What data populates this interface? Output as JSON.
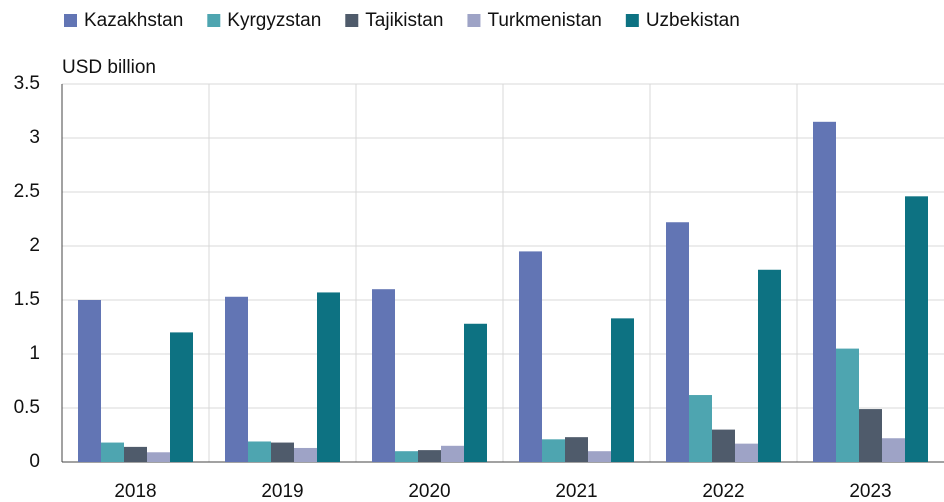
{
  "chart_data": {
    "type": "bar",
    "y_axis_label": "USD billion",
    "categories": [
      "2018",
      "2019",
      "2020",
      "2021",
      "2022",
      "2023"
    ],
    "series": [
      {
        "name": "Kazakhstan",
        "color": "#6275b4",
        "values": [
          1.5,
          1.53,
          1.6,
          1.95,
          2.22,
          3.15
        ]
      },
      {
        "name": "Kyrgyzstan",
        "color": "#4ea5b0",
        "values": [
          0.18,
          0.19,
          0.1,
          0.21,
          0.62,
          1.05
        ]
      },
      {
        "name": "Tajikistan",
        "color": "#4f5b6b",
        "values": [
          0.14,
          0.18,
          0.11,
          0.23,
          0.3,
          0.49
        ]
      },
      {
        "name": "Turkmenistan",
        "color": "#9ea3c6",
        "values": [
          0.09,
          0.13,
          0.15,
          0.1,
          0.17,
          0.22
        ]
      },
      {
        "name": "Uzbekistan",
        "color": "#0d7282",
        "values": [
          1.2,
          1.57,
          1.28,
          1.33,
          1.78,
          2.46
        ]
      }
    ],
    "ylim": [
      0,
      3.5
    ],
    "yticks": [
      0,
      0.5,
      1,
      1.5,
      2,
      2.5,
      3,
      3.5
    ],
    "grid": true,
    "legend": "top"
  }
}
